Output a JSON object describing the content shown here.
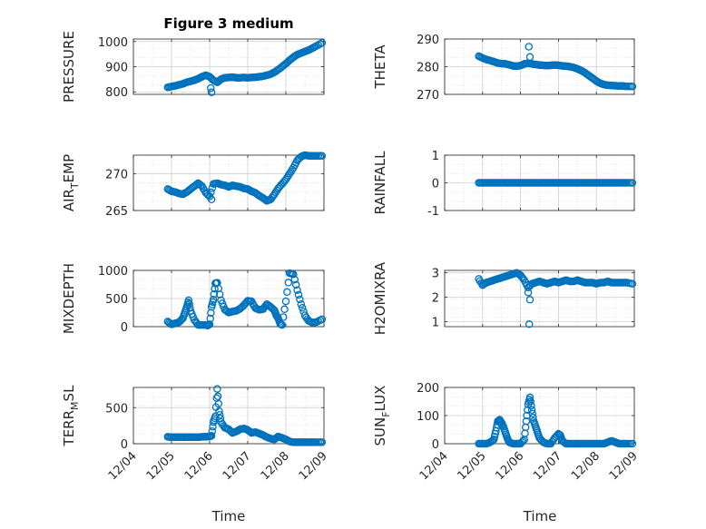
{
  "figure": {
    "title": "Figure 3 medium",
    "marker_color": "#0072BD",
    "grid": "dotted-minor",
    "x_axis_label": "Time",
    "x_tick_labels": [
      "12/04",
      "12/05",
      "12/06",
      "12/07",
      "12/08",
      "12/09"
    ]
  },
  "chart_data": [
    {
      "type": "scatter",
      "panel": "pressure",
      "title": "Figure 3 medium",
      "ylabel": "PRESSURE",
      "ylim": [
        790,
        1010
      ],
      "yticks": [
        800,
        900,
        1000
      ],
      "xlabel": "",
      "xlim": [
        0,
        5
      ],
      "xtick_labels": [
        "12/04",
        "12/05",
        "12/06",
        "12/07",
        "12/08",
        "12/09"
      ],
      "x": [
        0.9,
        1.0,
        1.1,
        1.2,
        1.3,
        1.4,
        1.5,
        1.6,
        1.7,
        1.8,
        1.9,
        2.0,
        2.1,
        2.2,
        2.3,
        2.4,
        2.5,
        2.6,
        2.7,
        2.8,
        2.9,
        3.0,
        3.1,
        3.2,
        3.3,
        3.4,
        3.5,
        3.6,
        3.7,
        3.8,
        3.9,
        4.0,
        4.1,
        4.2,
        4.3,
        4.4,
        4.5,
        4.6,
        4.7,
        4.8,
        4.95
      ],
      "y": [
        818,
        821,
        824,
        828,
        832,
        838,
        842,
        846,
        852,
        860,
        866,
        860,
        846,
        838,
        850,
        856,
        857,
        858,
        856,
        856,
        857,
        856,
        857,
        858,
        860,
        862,
        866,
        870,
        878,
        888,
        900,
        912,
        926,
        938,
        948,
        954,
        960,
        966,
        974,
        982,
        995
      ],
      "outliers": [
        {
          "x": 2.03,
          "y": 815
        },
        {
          "x": 2.05,
          "y": 798
        }
      ]
    },
    {
      "type": "scatter",
      "panel": "theta",
      "ylabel": "THETA",
      "ylim": [
        270,
        290
      ],
      "yticks": [
        270,
        280,
        290
      ],
      "xlim": [
        0,
        5
      ],
      "x": [
        0.9,
        1.0,
        1.1,
        1.2,
        1.3,
        1.4,
        1.5,
        1.6,
        1.7,
        1.8,
        1.9,
        2.0,
        2.1,
        2.2,
        2.3,
        2.4,
        2.5,
        2.6,
        2.7,
        2.8,
        2.9,
        3.0,
        3.1,
        3.2,
        3.3,
        3.4,
        3.5,
        3.6,
        3.7,
        3.8,
        3.9,
        4.0,
        4.1,
        4.2,
        4.3,
        4.4,
        4.5,
        4.6,
        4.7,
        4.8,
        4.95
      ],
      "y": [
        283.8,
        283.1,
        282.6,
        282.2,
        281.8,
        281.3,
        281.1,
        281.0,
        280.7,
        280.3,
        280.2,
        280.4,
        281.0,
        281.2,
        281.0,
        280.8,
        280.6,
        280.5,
        280.4,
        280.5,
        280.6,
        280.5,
        280.3,
        280.2,
        280.0,
        279.7,
        279.2,
        278.6,
        277.8,
        276.8,
        275.8,
        274.8,
        274.0,
        273.5,
        273.3,
        273.2,
        273.1,
        273.0,
        273.0,
        272.9,
        272.9
      ],
      "outliers": [
        {
          "x": 2.22,
          "y": 287.2
        },
        {
          "x": 2.25,
          "y": 283.5
        }
      ]
    },
    {
      "type": "scatter",
      "panel": "air_temp",
      "ylabel_main": "AIR",
      "ylabel_sub": "T",
      "ylabel_rest": "EMP",
      "ylim": [
        265,
        272.5
      ],
      "yticks": [
        265,
        270
      ],
      "xlim": [
        0,
        5
      ],
      "x": [
        0.9,
        1.0,
        1.1,
        1.2,
        1.3,
        1.4,
        1.5,
        1.6,
        1.7,
        1.8,
        1.9,
        2.0,
        2.1,
        2.2,
        2.3,
        2.4,
        2.5,
        2.6,
        2.7,
        2.8,
        2.9,
        3.0,
        3.1,
        3.2,
        3.3,
        3.4,
        3.5,
        3.6,
        3.7,
        3.8,
        3.9,
        4.0,
        4.1,
        4.2,
        4.3,
        4.4,
        4.5,
        4.6,
        4.7,
        4.8,
        4.95
      ],
      "y": [
        267.9,
        267.6,
        267.5,
        267.3,
        267.2,
        267.5,
        267.9,
        268.3,
        268.7,
        268.3,
        267.4,
        266.9,
        268.6,
        268.7,
        268.5,
        268.4,
        268.2,
        268.4,
        268.3,
        268.2,
        268.0,
        267.9,
        267.6,
        267.4,
        267.0,
        266.7,
        266.3,
        266.5,
        267.2,
        268.0,
        268.6,
        269.2,
        270.0,
        270.8,
        271.8,
        272.3,
        272.5,
        272.4,
        272.4,
        272.4,
        272.4
      ],
      "outliers": [
        {
          "x": 2.05,
          "y": 266.5
        }
      ]
    },
    {
      "type": "scatter",
      "panel": "rainfall",
      "ylabel": "RAINFALL",
      "ylim": [
        -1,
        1
      ],
      "yticks": [
        -1,
        0,
        1
      ],
      "xlim": [
        0,
        5
      ],
      "x": [
        0.9,
        1.0,
        1.1,
        1.2,
        1.3,
        1.4,
        1.5,
        1.6,
        1.7,
        1.8,
        1.9,
        2.0,
        2.1,
        2.2,
        2.3,
        2.4,
        2.5,
        2.6,
        2.7,
        2.8,
        2.9,
        3.0,
        3.1,
        3.2,
        3.3,
        3.4,
        3.5,
        3.6,
        3.7,
        3.8,
        3.9,
        4.0,
        4.1,
        4.2,
        4.3,
        4.4,
        4.5,
        4.6,
        4.7,
        4.8,
        4.95
      ],
      "y": [
        0,
        0,
        0,
        0,
        0,
        0,
        0,
        0,
        0,
        0,
        0,
        0,
        0,
        0,
        0,
        0,
        0,
        0,
        0,
        0,
        0,
        0,
        0,
        0,
        0,
        0,
        0,
        0,
        0,
        0,
        0,
        0,
        0,
        0,
        0,
        0,
        0,
        0,
        0,
        0,
        0
      ]
    },
    {
      "type": "scatter",
      "panel": "mixdepth",
      "ylabel": "MIXDEPTH",
      "ylim": [
        0,
        1000
      ],
      "yticks": [
        0,
        500,
        1000
      ],
      "xlim": [
        0,
        5
      ],
      "x": [
        0.9,
        1.0,
        1.1,
        1.2,
        1.3,
        1.35,
        1.4,
        1.45,
        1.5,
        1.6,
        1.7,
        1.8,
        1.9,
        1.95,
        2.0,
        2.05,
        2.1,
        2.15,
        2.2,
        2.3,
        2.4,
        2.5,
        2.6,
        2.7,
        2.8,
        2.9,
        3.0,
        3.1,
        3.2,
        3.3,
        3.4,
        3.5,
        3.6,
        3.7,
        3.75,
        3.8,
        3.85,
        3.9,
        4.0,
        4.1,
        4.2,
        4.3,
        4.4,
        4.5,
        4.6,
        4.7,
        4.8,
        4.95
      ],
      "y": [
        90,
        40,
        60,
        80,
        150,
        250,
        350,
        470,
        280,
        120,
        30,
        30,
        30,
        20,
        40,
        350,
        480,
        770,
        780,
        470,
        300,
        250,
        270,
        280,
        320,
        380,
        460,
        450,
        330,
        300,
        310,
        400,
        350,
        290,
        200,
        150,
        50,
        30,
        450,
        950,
        930,
        650,
        400,
        200,
        100,
        70,
        80,
        130
      ]
    },
    {
      "type": "scatter",
      "panel": "h2omixra",
      "ylabel": "H2OMIXRA",
      "ylim": [
        0.8,
        3.1
      ],
      "yticks": [
        1,
        2,
        3
      ],
      "xlim": [
        0,
        5
      ],
      "x": [
        0.9,
        1.0,
        1.1,
        1.2,
        1.3,
        1.4,
        1.5,
        1.6,
        1.7,
        1.8,
        1.9,
        2.0,
        2.1,
        2.2,
        2.3,
        2.4,
        2.5,
        2.6,
        2.7,
        2.8,
        2.9,
        3.0,
        3.1,
        3.2,
        3.3,
        3.4,
        3.5,
        3.6,
        3.7,
        3.8,
        3.9,
        4.0,
        4.1,
        4.2,
        4.3,
        4.4,
        4.5,
        4.6,
        4.7,
        4.8,
        4.95
      ],
      "y": [
        2.75,
        2.5,
        2.6,
        2.65,
        2.7,
        2.75,
        2.8,
        2.85,
        2.9,
        2.95,
        3.0,
        2.9,
        2.7,
        2.4,
        2.55,
        2.6,
        2.65,
        2.6,
        2.55,
        2.6,
        2.65,
        2.6,
        2.65,
        2.7,
        2.65,
        2.65,
        2.7,
        2.65,
        2.6,
        2.6,
        2.6,
        2.55,
        2.6,
        2.6,
        2.65,
        2.6,
        2.6,
        2.6,
        2.6,
        2.6,
        2.55
      ],
      "outliers": [
        {
          "x": 2.2,
          "y": 2.2
        },
        {
          "x": 2.25,
          "y": 1.9
        },
        {
          "x": 2.23,
          "y": 0.9
        }
      ]
    },
    {
      "type": "scatter",
      "panel": "terr_msl",
      "ylabel_main": "TERR",
      "ylabel_sub": "M",
      "ylabel_rest": "SL",
      "ylim": [
        0,
        780
      ],
      "yticks": [
        0,
        500
      ],
      "xlim": [
        0,
        5
      ],
      "x": [
        0.9,
        1.0,
        1.1,
        1.2,
        1.3,
        1.4,
        1.5,
        1.6,
        1.7,
        1.8,
        1.9,
        2.0,
        2.05,
        2.1,
        2.15,
        2.2,
        2.25,
        2.3,
        2.4,
        2.5,
        2.6,
        2.7,
        2.8,
        2.9,
        3.0,
        3.1,
        3.2,
        3.3,
        3.4,
        3.5,
        3.6,
        3.7,
        3.8,
        3.9,
        4.0,
        4.1,
        4.2,
        4.3,
        4.4,
        4.5,
        4.6,
        4.7,
        4.8,
        4.95
      ],
      "y": [
        95,
        90,
        90,
        90,
        90,
        90,
        90,
        90,
        90,
        95,
        95,
        100,
        110,
        300,
        380,
        760,
        450,
        300,
        220,
        200,
        150,
        170,
        200,
        210,
        190,
        150,
        160,
        140,
        120,
        90,
        70,
        60,
        100,
        80,
        60,
        30,
        20,
        20,
        20,
        20,
        20,
        20,
        20,
        20
      ]
    },
    {
      "type": "scatter",
      "panel": "sun_flux",
      "ylabel_main": "SUN",
      "ylabel_sub": "F",
      "ylabel_rest": "LUX",
      "ylim": [
        0,
        200
      ],
      "yticks": [
        0,
        100,
        200
      ],
      "xlim": [
        0,
        5
      ],
      "x": [
        0.9,
        1.0,
        1.1,
        1.2,
        1.3,
        1.35,
        1.4,
        1.45,
        1.5,
        1.55,
        1.6,
        1.65,
        1.7,
        1.8,
        1.9,
        2.0,
        2.1,
        2.15,
        2.2,
        2.25,
        2.3,
        2.35,
        2.4,
        2.45,
        2.5,
        2.6,
        2.7,
        2.8,
        2.9,
        3.0,
        3.05,
        3.1,
        3.2,
        3.3,
        3.4,
        3.5,
        3.6,
        3.7,
        3.8,
        3.9,
        4.0,
        4.1,
        4.2,
        4.3,
        4.4,
        4.5,
        4.6,
        4.7,
        4.8,
        4.95
      ],
      "y": [
        0,
        0,
        0,
        5,
        15,
        45,
        80,
        85,
        75,
        60,
        40,
        20,
        5,
        0,
        0,
        0,
        15,
        80,
        140,
        165,
        120,
        80,
        60,
        40,
        20,
        5,
        0,
        0,
        20,
        35,
        30,
        10,
        0,
        0,
        0,
        0,
        0,
        0,
        0,
        0,
        0,
        0,
        0,
        5,
        10,
        5,
        0,
        0,
        0,
        0
      ]
    }
  ]
}
